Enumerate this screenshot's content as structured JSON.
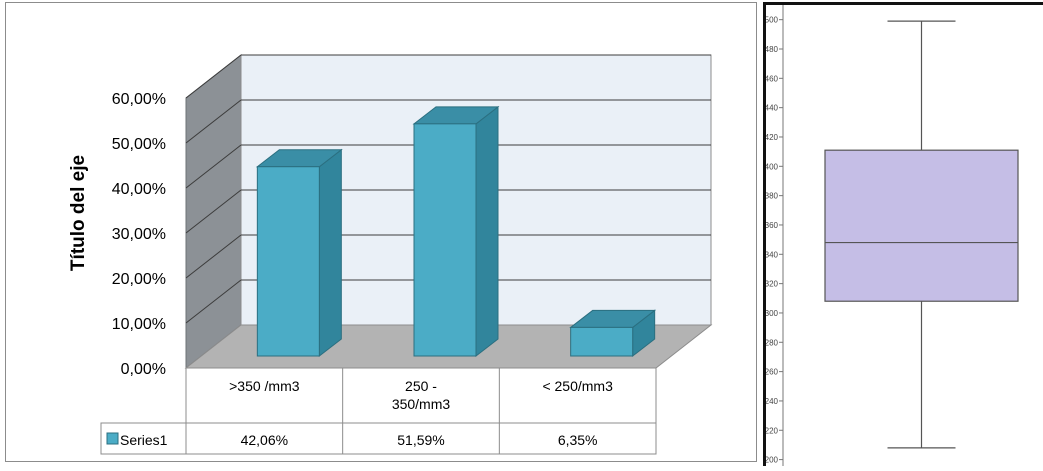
{
  "chart_data": [
    {
      "type": "bar",
      "title": "",
      "ylabel": "Título del eje",
      "xlabel": "",
      "ylim": [
        0,
        0.6
      ],
      "y_ticks": [
        "0,00%",
        "10,00%",
        "20,00%",
        "30,00%",
        "40,00%",
        "50,00%",
        "60,00%"
      ],
      "y_tick_values": [
        0,
        0.1,
        0.2,
        0.3,
        0.4,
        0.5,
        0.6
      ],
      "categories": [
        ">350 /mm3",
        "250 - 350/mm3",
        "< 250/mm3"
      ],
      "category_lines": [
        [
          ">350 /mm3"
        ],
        [
          "250 -",
          "350/mm3"
        ],
        [
          "< 250/mm3"
        ]
      ],
      "series": [
        {
          "name": "Series1",
          "values": [
            0.4206,
            0.5159,
            0.0635
          ],
          "labels": [
            "42,06%",
            "51,59%",
            "6,35%"
          ]
        }
      ],
      "colors": {
        "bar_front": "#4BACC6",
        "bar_side": "#31859C",
        "bar_top": "#3A8EA6",
        "wall": "#EAF0F7",
        "side_wall": "#8C9196",
        "floor": "#B3B3B3"
      },
      "grid": true,
      "legend": "data-table"
    },
    {
      "type": "box",
      "y_ticks": [
        "200",
        "220",
        "240",
        "260",
        "280",
        "300",
        "320",
        "340",
        "360",
        "380",
        "400",
        "420",
        "440",
        "460",
        "480",
        "500"
      ],
      "ylim": [
        197,
        510
      ],
      "stats": {
        "min": 208,
        "q1": 308,
        "median": 348,
        "q3": 411,
        "max": 499
      },
      "colors": {
        "box_fill": "#C5BEE6",
        "stroke": "#555555"
      }
    }
  ]
}
